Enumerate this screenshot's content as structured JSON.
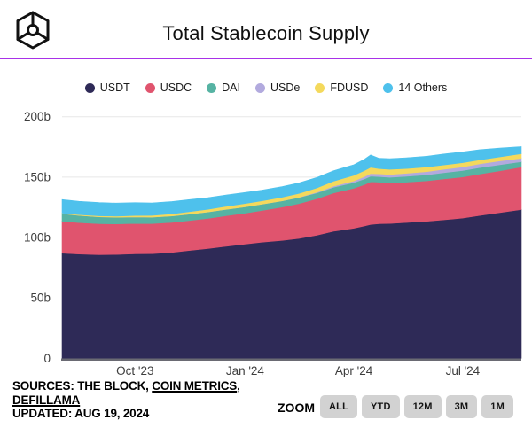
{
  "header": {
    "title": "Total Stablecoin Supply",
    "logo": "the-block-logo",
    "accent_color": "#a832e8"
  },
  "chart_data": {
    "type": "area",
    "stacked": true,
    "title": "Total Stablecoin Supply",
    "unit": "billions of USD",
    "ylim": [
      0,
      200
    ],
    "grid": true,
    "legend_position": "top",
    "x": [
      "2023-08-01",
      "2023-08-15",
      "2023-09-01",
      "2023-09-15",
      "2023-10-01",
      "2023-10-15",
      "2023-11-01",
      "2023-11-15",
      "2023-12-01",
      "2023-12-15",
      "2024-01-01",
      "2024-01-15",
      "2024-02-01",
      "2024-02-15",
      "2024-03-01",
      "2024-03-15",
      "2024-04-01",
      "2024-04-10",
      "2024-04-15",
      "2024-04-22",
      "2024-05-01",
      "2024-05-15",
      "2024-06-01",
      "2024-06-15",
      "2024-07-01",
      "2024-07-15",
      "2024-08-01",
      "2024-08-19"
    ],
    "series": [
      {
        "name": "USDT",
        "color": "#2e2a57",
        "values": [
          87.0,
          86.3,
          85.8,
          85.9,
          86.4,
          86.6,
          87.7,
          89.2,
          90.9,
          92.6,
          94.6,
          96.1,
          97.6,
          99.2,
          101.8,
          105.1,
          107.6,
          109.6,
          110.8,
          111.4,
          111.6,
          112.4,
          113.4,
          114.6,
          116.1,
          118.2,
          120.6,
          123.1
        ]
      },
      {
        "name": "USDC",
        "color": "#e0546e",
        "values": [
          26.5,
          26.0,
          25.6,
          25.3,
          25.2,
          24.9,
          24.8,
          24.8,
          24.9,
          25.2,
          25.5,
          26.2,
          27.6,
          28.8,
          30.2,
          31.7,
          33.1,
          34.3,
          35.3,
          34.4,
          33.6,
          33.4,
          33.5,
          33.8,
          34.0,
          34.3,
          34.6,
          35.2
        ]
      },
      {
        "name": "DAI",
        "color": "#56b3a3",
        "values": [
          6.2,
          6.0,
          5.7,
          5.5,
          5.4,
          5.3,
          5.3,
          5.3,
          5.3,
          5.3,
          5.3,
          5.2,
          5.1,
          5.0,
          4.9,
          4.8,
          4.7,
          4.7,
          4.7,
          4.6,
          4.6,
          4.8,
          5.0,
          5.2,
          5.3,
          5.3,
          5.0,
          4.4
        ]
      },
      {
        "name": "USDe",
        "color": "#b2aade",
        "values": [
          0,
          0,
          0,
          0,
          0,
          0,
          0,
          0,
          0,
          0,
          0,
          0,
          0,
          0.2,
          0.5,
          0.9,
          1.4,
          1.9,
          2.1,
          2.3,
          2.4,
          2.5,
          2.6,
          2.8,
          3.0,
          3.1,
          3.2,
          2.9
        ]
      },
      {
        "name": "FDUSD",
        "color": "#f4d95c",
        "values": [
          0.5,
          0.6,
          0.8,
          1.0,
          1.2,
          1.5,
          1.8,
          2.0,
          2.2,
          2.5,
          2.7,
          2.8,
          3.0,
          3.3,
          3.6,
          4.1,
          4.6,
          5.0,
          5.2,
          4.3,
          4.2,
          4.0,
          3.8,
          3.6,
          3.5,
          3.4,
          3.3,
          3.7
        ]
      },
      {
        "name": "14 Others",
        "color": "#4ec1ec",
        "values": [
          11.2,
          11.0,
          11.0,
          10.8,
          10.6,
          10.3,
          10.2,
          10.0,
          9.7,
          9.4,
          9.2,
          8.9,
          8.8,
          8.7,
          8.7,
          8.7,
          8.8,
          9.4,
          10.3,
          8.6,
          8.8,
          8.9,
          9.0,
          9.1,
          9.0,
          8.4,
          7.3,
          5.9
        ]
      }
    ],
    "y_ticks": [
      {
        "label": "0",
        "value": 0
      },
      {
        "label": "50b",
        "value": 50
      },
      {
        "label": "100b",
        "value": 100
      },
      {
        "label": "150b",
        "value": 150
      },
      {
        "label": "200b",
        "value": 200
      }
    ],
    "x_ticks": [
      {
        "label": "Oct '23",
        "date": "2023-10-01"
      },
      {
        "label": "Jan '24",
        "date": "2024-01-01"
      },
      {
        "label": "Apr '24",
        "date": "2024-04-01"
      },
      {
        "label": "Jul '24",
        "date": "2024-07-01"
      }
    ],
    "colors": {
      "grid": "#e7e7e7",
      "axis_line": "#6a6a73",
      "tick_text": "#3d3d3d"
    }
  },
  "footer": {
    "sources_prefix": "SOURCES: THE BLOCK, ",
    "source_link_1": "COIN METRICS",
    "comma": ",",
    "source_link_2": "DEFILLAMA",
    "updated": "UPDATED: AUG 19, 2024",
    "zoom_label": "ZOOM",
    "zoom_buttons": [
      "ALL",
      "YTD",
      "12M",
      "3M",
      "1M"
    ]
  }
}
